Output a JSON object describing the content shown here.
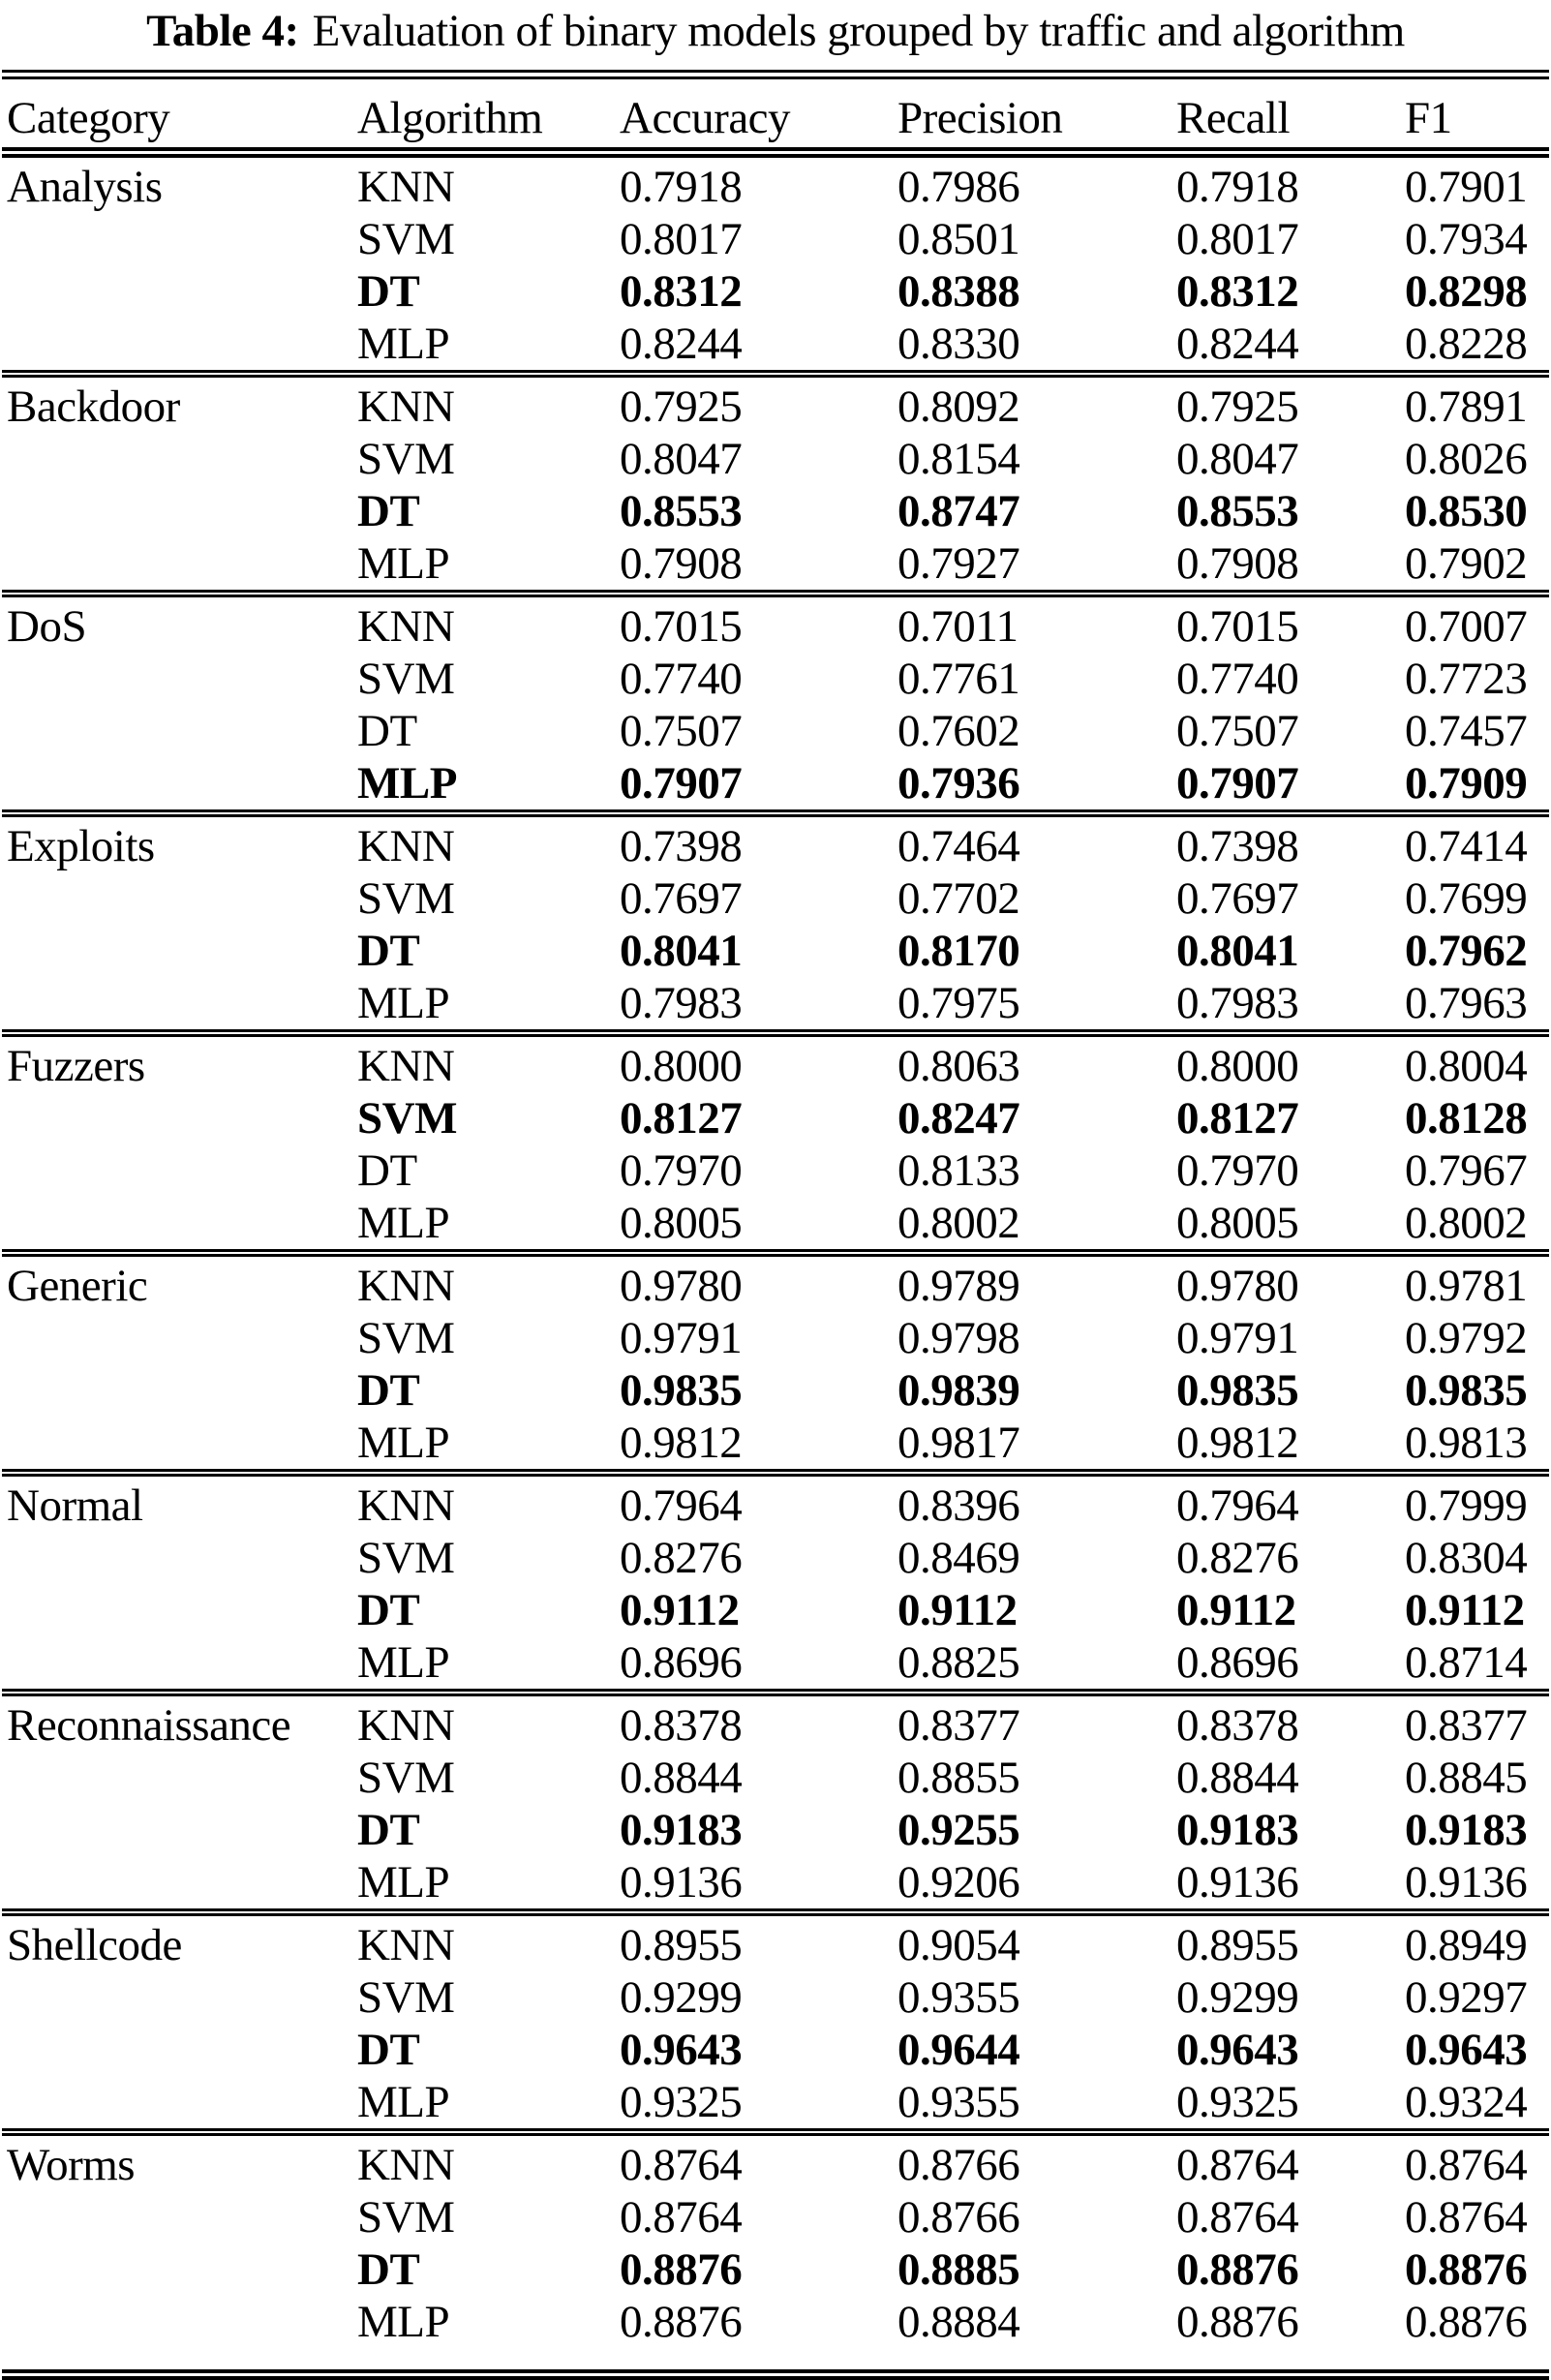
{
  "colors": {
    "ink": "#000000",
    "background": "#ffffff"
  },
  "caption": {
    "label": "Table 4:",
    "text": "Evaluation of binary models grouped by traffic and algorithm"
  },
  "table": {
    "columns": [
      "Category",
      "Algorithm",
      "Accuracy",
      "Precision",
      "Recall",
      "F1"
    ],
    "groups": [
      {
        "category": "Analysis",
        "rows": [
          {
            "algorithm": "KNN",
            "accuracy": "0.7918",
            "precision": "0.7986",
            "recall": "0.7918",
            "f1": "0.7901",
            "bold": false
          },
          {
            "algorithm": "SVM",
            "accuracy": "0.8017",
            "precision": "0.8501",
            "recall": "0.8017",
            "f1": "0.7934",
            "bold": false
          },
          {
            "algorithm": "DT",
            "accuracy": "0.8312",
            "precision": "0.8388",
            "recall": "0.8312",
            "f1": "0.8298",
            "bold": true
          },
          {
            "algorithm": "MLP",
            "accuracy": "0.8244",
            "precision": "0.8330",
            "recall": "0.8244",
            "f1": "0.8228",
            "bold": false
          }
        ]
      },
      {
        "category": "Backdoor",
        "rows": [
          {
            "algorithm": "KNN",
            "accuracy": "0.7925",
            "precision": "0.8092",
            "recall": "0.7925",
            "f1": "0.7891",
            "bold": false
          },
          {
            "algorithm": "SVM",
            "accuracy": "0.8047",
            "precision": "0.8154",
            "recall": "0.8047",
            "f1": "0.8026",
            "bold": false
          },
          {
            "algorithm": "DT",
            "accuracy": "0.8553",
            "precision": "0.8747",
            "recall": "0.8553",
            "f1": "0.8530",
            "bold": true
          },
          {
            "algorithm": "MLP",
            "accuracy": "0.7908",
            "precision": "0.7927",
            "recall": "0.7908",
            "f1": "0.7902",
            "bold": false
          }
        ]
      },
      {
        "category": "DoS",
        "rows": [
          {
            "algorithm": "KNN",
            "accuracy": "0.7015",
            "precision": "0.7011",
            "recall": "0.7015",
            "f1": "0.7007",
            "bold": false
          },
          {
            "algorithm": "SVM",
            "accuracy": "0.7740",
            "precision": "0.7761",
            "recall": "0.7740",
            "f1": "0.7723",
            "bold": false
          },
          {
            "algorithm": "DT",
            "accuracy": "0.7507",
            "precision": "0.7602",
            "recall": "0.7507",
            "f1": "0.7457",
            "bold": false
          },
          {
            "algorithm": "MLP",
            "accuracy": "0.7907",
            "precision": "0.7936",
            "recall": "0.7907",
            "f1": "0.7909",
            "bold": true
          }
        ]
      },
      {
        "category": "Exploits",
        "rows": [
          {
            "algorithm": "KNN",
            "accuracy": "0.7398",
            "precision": "0.7464",
            "recall": "0.7398",
            "f1": "0.7414",
            "bold": false
          },
          {
            "algorithm": "SVM",
            "accuracy": "0.7697",
            "precision": "0.7702",
            "recall": "0.7697",
            "f1": "0.7699",
            "bold": false
          },
          {
            "algorithm": "DT",
            "accuracy": "0.8041",
            "precision": "0.8170",
            "recall": "0.8041",
            "f1": "0.7962",
            "bold": true
          },
          {
            "algorithm": "MLP",
            "accuracy": "0.7983",
            "precision": "0.7975",
            "recall": "0.7983",
            "f1": "0.7963",
            "bold": false
          }
        ]
      },
      {
        "category": "Fuzzers",
        "rows": [
          {
            "algorithm": "KNN",
            "accuracy": "0.8000",
            "precision": "0.8063",
            "recall": "0.8000",
            "f1": "0.8004",
            "bold": false
          },
          {
            "algorithm": "SVM",
            "accuracy": "0.8127",
            "precision": "0.8247",
            "recall": "0.8127",
            "f1": "0.8128",
            "bold": true
          },
          {
            "algorithm": "DT",
            "accuracy": "0.7970",
            "precision": "0.8133",
            "recall": "0.7970",
            "f1": "0.7967",
            "bold": false
          },
          {
            "algorithm": "MLP",
            "accuracy": "0.8005",
            "precision": "0.8002",
            "recall": "0.8005",
            "f1": "0.8002",
            "bold": false
          }
        ]
      },
      {
        "category": "Generic",
        "rows": [
          {
            "algorithm": "KNN",
            "accuracy": "0.9780",
            "precision": "0.9789",
            "recall": "0.9780",
            "f1": "0.9781",
            "bold": false
          },
          {
            "algorithm": "SVM",
            "accuracy": "0.9791",
            "precision": "0.9798",
            "recall": "0.9791",
            "f1": "0.9792",
            "bold": false
          },
          {
            "algorithm": "DT",
            "accuracy": "0.9835",
            "precision": "0.9839",
            "recall": "0.9835",
            "f1": "0.9835",
            "bold": true
          },
          {
            "algorithm": "MLP",
            "accuracy": "0.9812",
            "precision": "0.9817",
            "recall": "0.9812",
            "f1": "0.9813",
            "bold": false
          }
        ]
      },
      {
        "category": "Normal",
        "rows": [
          {
            "algorithm": "KNN",
            "accuracy": "0.7964",
            "precision": "0.8396",
            "recall": "0.7964",
            "f1": "0.7999",
            "bold": false
          },
          {
            "algorithm": "SVM",
            "accuracy": "0.8276",
            "precision": "0.8469",
            "recall": "0.8276",
            "f1": "0.8304",
            "bold": false
          },
          {
            "algorithm": "DT",
            "accuracy": "0.9112",
            "precision": "0.9112",
            "recall": "0.9112",
            "f1": "0.9112",
            "bold": true
          },
          {
            "algorithm": "MLP",
            "accuracy": "0.8696",
            "precision": "0.8825",
            "recall": "0.8696",
            "f1": "0.8714",
            "bold": false
          }
        ]
      },
      {
        "category": "Reconnaissance",
        "rows": [
          {
            "algorithm": "KNN",
            "accuracy": "0.8378",
            "precision": "0.8377",
            "recall": "0.8378",
            "f1": "0.8377",
            "bold": false
          },
          {
            "algorithm": "SVM",
            "accuracy": "0.8844",
            "precision": "0.8855",
            "recall": "0.8844",
            "f1": "0.8845",
            "bold": false
          },
          {
            "algorithm": "DT",
            "accuracy": "0.9183",
            "precision": "0.9255",
            "recall": "0.9183",
            "f1": "0.9183",
            "bold": true
          },
          {
            "algorithm": "MLP",
            "accuracy": "0.9136",
            "precision": "0.9206",
            "recall": "0.9136",
            "f1": "0.9136",
            "bold": false
          }
        ]
      },
      {
        "category": "Shellcode",
        "rows": [
          {
            "algorithm": "KNN",
            "accuracy": "0.8955",
            "precision": "0.9054",
            "recall": "0.8955",
            "f1": "0.8949",
            "bold": false
          },
          {
            "algorithm": "SVM",
            "accuracy": "0.9299",
            "precision": "0.9355",
            "recall": "0.9299",
            "f1": "0.9297",
            "bold": false
          },
          {
            "algorithm": "DT",
            "accuracy": "0.9643",
            "precision": "0.9644",
            "recall": "0.9643",
            "f1": "0.9643",
            "bold": true
          },
          {
            "algorithm": "MLP",
            "accuracy": "0.9325",
            "precision": "0.9355",
            "recall": "0.9325",
            "f1": "0.9324",
            "bold": false
          }
        ]
      },
      {
        "category": "Worms",
        "rows": [
          {
            "algorithm": "KNN",
            "accuracy": "0.8764",
            "precision": "0.8766",
            "recall": "0.8764",
            "f1": "0.8764",
            "bold": false
          },
          {
            "algorithm": "SVM",
            "accuracy": "0.8764",
            "precision": "0.8766",
            "recall": "0.8764",
            "f1": "0.8764",
            "bold": false
          },
          {
            "algorithm": "DT",
            "accuracy": "0.8876",
            "precision": "0.8885",
            "recall": "0.8876",
            "f1": "0.8876",
            "bold": true
          },
          {
            "algorithm": "MLP",
            "accuracy": "0.8876",
            "precision": "0.8884",
            "recall": "0.8876",
            "f1": "0.8876",
            "bold": false
          }
        ]
      }
    ]
  }
}
